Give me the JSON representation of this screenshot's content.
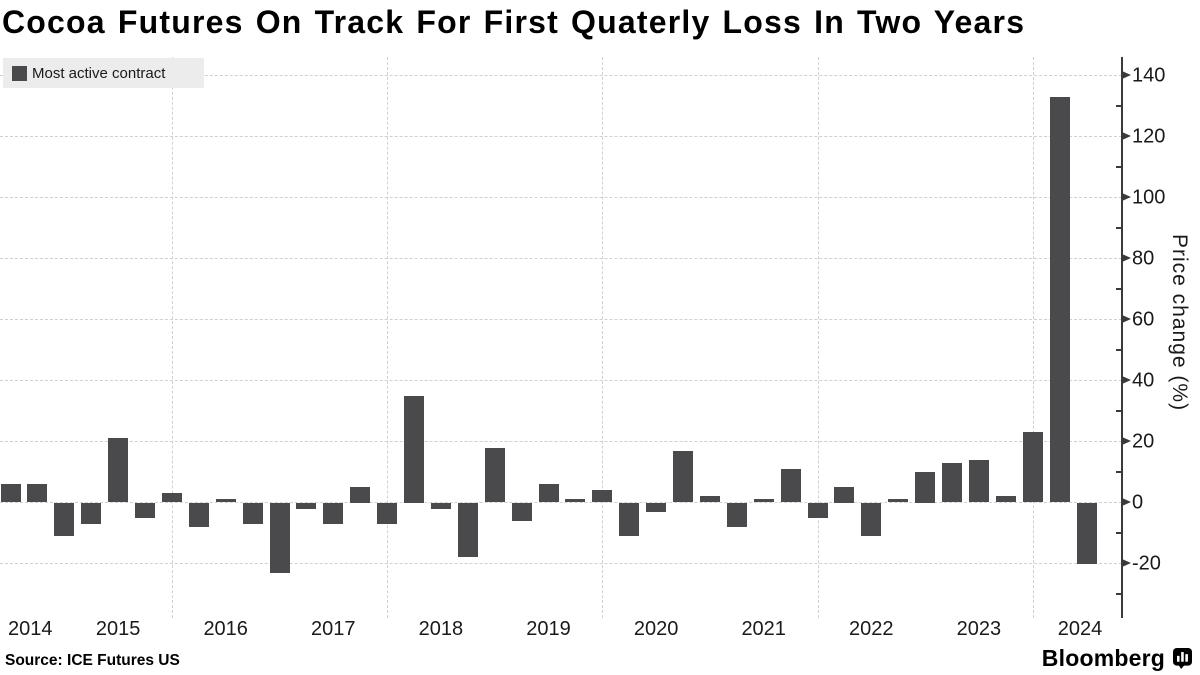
{
  "title": "Cocoa Futures On Track For First Quaterly Loss In Two Years",
  "legend": {
    "label": "Most active contract"
  },
  "source": "Source: ICE Futures US",
  "branding": "Bloomberg",
  "y_axis": {
    "label": "Price change (%)",
    "major_ticks": [
      140,
      120,
      100,
      80,
      60,
      40,
      20,
      0,
      -20
    ],
    "minor_ticks": [
      130,
      110,
      90,
      70,
      50,
      30,
      10,
      -10,
      -30
    ]
  },
  "x_axis": {
    "years": [
      "2014",
      "2015",
      "2016",
      "2017",
      "2018",
      "2019",
      "2020",
      "2021",
      "2022",
      "2023",
      "2024"
    ]
  },
  "colors": {
    "bar": "#4a4a4c",
    "axis": "#3a3a3c",
    "grid": "#d0d0d0",
    "legend_bg": "#ececec",
    "text": "#1a1a1a",
    "title": "#000000"
  },
  "chart_data": {
    "type": "bar",
    "title": "Cocoa Futures On Track For First Quaterly Loss In Two Years",
    "series_name": "Most active contract",
    "xlabel": "",
    "ylabel": "Price change (%)",
    "ylim": [
      -37,
      146
    ],
    "grid": "dashed",
    "legend_position": "top-left",
    "categories": [
      "2014 Q2",
      "2014 Q3",
      "2014 Q4",
      "2015 Q1",
      "2015 Q2",
      "2015 Q3",
      "2015 Q4",
      "2016 Q1",
      "2016 Q2",
      "2016 Q3",
      "2016 Q4",
      "2017 Q1",
      "2017 Q2",
      "2017 Q3",
      "2017 Q4",
      "2018 Q1",
      "2018 Q2",
      "2018 Q3",
      "2018 Q4",
      "2019 Q1",
      "2019 Q2",
      "2019 Q3",
      "2019 Q4",
      "2020 Q1",
      "2020 Q2",
      "2020 Q3",
      "2020 Q4",
      "2021 Q1",
      "2021 Q2",
      "2021 Q3",
      "2021 Q4",
      "2022 Q1",
      "2022 Q2",
      "2022 Q3",
      "2022 Q4",
      "2023 Q1",
      "2023 Q2",
      "2023 Q3",
      "2023 Q4",
      "2024 Q1",
      "2024 Q2"
    ],
    "values": [
      6,
      6,
      -11,
      -7,
      21,
      -5,
      3,
      -8,
      1,
      -7,
      -23,
      -2,
      -7,
      5,
      -7,
      35,
      -2,
      -18,
      18,
      -6,
      6,
      1,
      4,
      -11,
      -3,
      17,
      2,
      -8,
      1,
      11,
      -5,
      5,
      -11,
      1,
      10,
      13,
      14,
      2,
      23,
      133,
      -20
    ]
  }
}
